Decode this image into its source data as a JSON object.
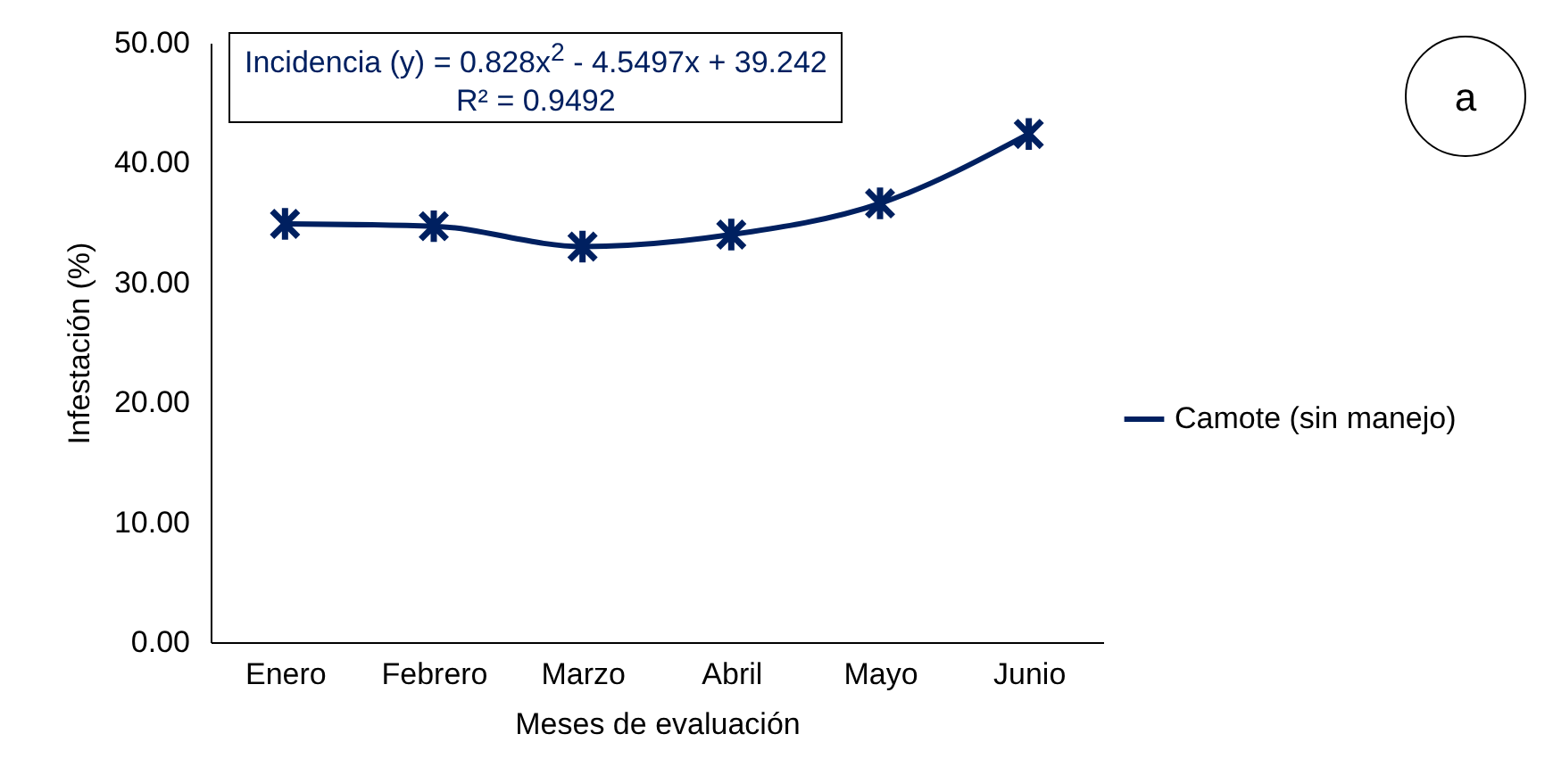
{
  "chart_data": {
    "type": "line",
    "xlabel": "Meses de evaluación",
    "ylabel": "Infestación (%)",
    "categories": [
      "Enero",
      "Febrero",
      "Marzo",
      "Abril",
      "Mayo",
      "Junio"
    ],
    "series": [
      {
        "name": "Camote (sin manejo)",
        "color": "#002060",
        "values": [
          34.9,
          34.7,
          33.0,
          34.0,
          36.6,
          42.4
        ]
      }
    ],
    "ylim": [
      0,
      50
    ],
    "yticks": [
      {
        "value": 0,
        "label": "0.00"
      },
      {
        "value": 10,
        "label": "10.00"
      },
      {
        "value": 20,
        "label": "20.00"
      },
      {
        "value": 30,
        "label": "30.00"
      },
      {
        "value": 40,
        "label": "40.00"
      },
      {
        "value": 50,
        "label": "50.00"
      }
    ],
    "annotations": [
      "Incidencia (y) = 0.828x$^{2}$ - 4.5497x + 39.242\nR² = 0.9492",
      "a"
    ],
    "legend": "right",
    "marker": "cross",
    "line_style": "solid",
    "grid": false
  }
}
